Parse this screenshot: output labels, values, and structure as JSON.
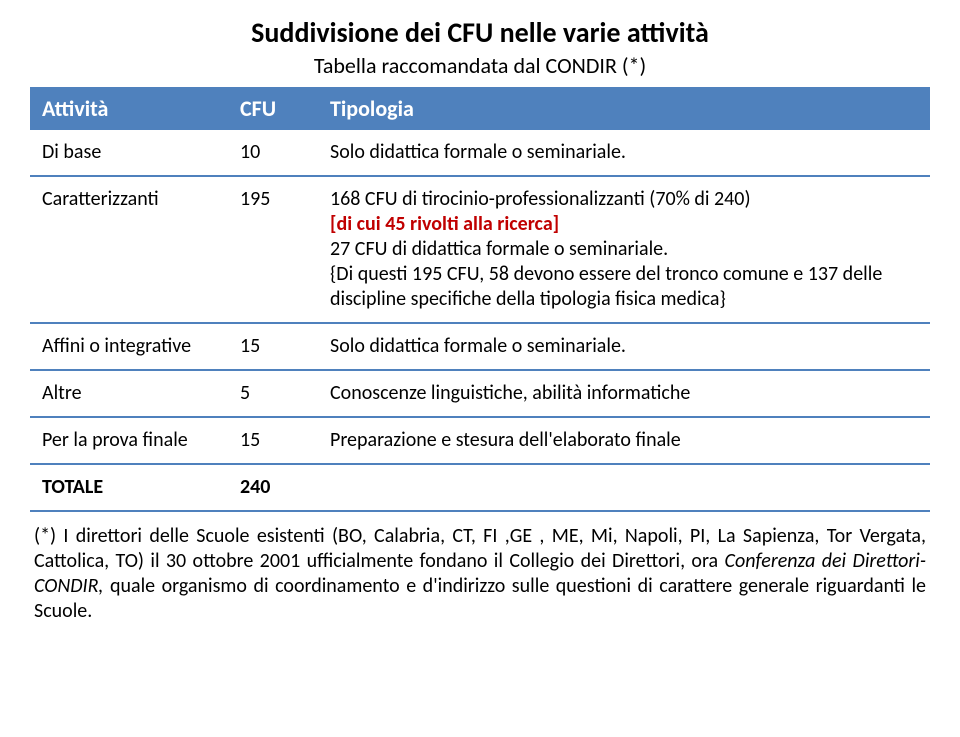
{
  "title": "Suddivisione dei CFU  nelle varie attività",
  "subtitle": "Tabella raccomandata dal CONDIR (*)",
  "headers": {
    "col1": "Attività",
    "col2": "CFU",
    "col3": "Tipologia"
  },
  "rows": {
    "r1": {
      "att": "Di base",
      "cfu": "10",
      "tip": "Solo didattica formale o seminariale."
    },
    "r2": {
      "att": "Caratterizzanti",
      "cfu": "195",
      "tip_l1": "168 CFU di tirocinio-professionalizzanti (70% di 240)",
      "tip_l2": "[di cui 45 rivolti alla ricerca]",
      "tip_l3": "27 CFU di didattica formale o seminariale.",
      "tip_l4": "{Di questi 195 CFU, 58 devono essere del tronco comune e 137 delle discipline specifiche della  tipologia fisica medica}"
    },
    "r3": {
      "att": "Affini o integrative",
      "cfu": "15",
      "tip": "Solo didattica formale o seminariale."
    },
    "r4": {
      "att": "Altre",
      "cfu": "5",
      "tip": "Conoscenze linguistiche, abilità informatiche"
    },
    "r5": {
      "att": "Per la prova finale",
      "cfu": "15",
      "tip": "Preparazione e stesura dell'elaborato finale"
    },
    "r6": {
      "att": "TOTALE",
      "cfu": "240",
      "tip": ""
    }
  },
  "footnote": {
    "t1": "(*) I direttori delle Scuole esistenti (BO, Calabria, CT, FI ,GE , ME, Mi, Napoli, PI, La Sapienza, Tor Vergata, Cattolica, TO) il 30  ottobre 2001 ufficialmente fondano il Collegio dei Direttori, ora ",
    "t2": "Conferenza dei Direttori-CONDIR, ",
    "t3": "quale organismo di coordinamento e d'indirizzo sulle questioni di carattere generale riguardanti le Scuole."
  },
  "colors": {
    "header_bg": "#4f81bd",
    "header_text": "#ffffff",
    "row_border": "#4f81bd",
    "red_text": "#c00000",
    "body_text": "#000000",
    "background": "#ffffff"
  }
}
